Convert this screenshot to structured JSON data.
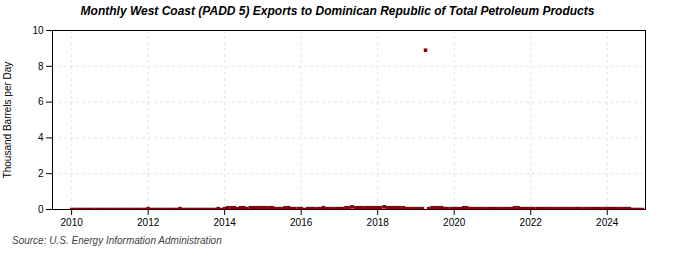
{
  "chart_data": {
    "type": "scatter",
    "title": "Monthly West Coast (PADD 5) Exports to Dominican Republic of Total Petroleum Products",
    "ylabel": "Thousand Barrels per Day",
    "source": "Source: U.S. Energy Information Administration",
    "color": "#8b0000",
    "marker": "square",
    "grid": true,
    "xlim": [
      2009.5,
      2025.0
    ],
    "xticks": [
      2010,
      2012,
      2014,
      2016,
      2018,
      2020,
      2022,
      2024
    ],
    "ylim": [
      0,
      10
    ],
    "yticks": [
      0,
      2,
      4,
      6,
      8,
      10
    ],
    "x": [
      2010.0,
      2010.08,
      2010.17,
      2010.25,
      2010.33,
      2010.42,
      2010.5,
      2010.58,
      2010.67,
      2010.75,
      2010.83,
      2010.92,
      2011.0,
      2011.08,
      2011.17,
      2011.25,
      2011.33,
      2011.42,
      2011.5,
      2011.58,
      2011.67,
      2011.75,
      2011.83,
      2011.92,
      2012.0,
      2012.08,
      2012.17,
      2012.25,
      2012.33,
      2012.42,
      2012.5,
      2012.58,
      2012.67,
      2012.75,
      2012.83,
      2012.92,
      2013.0,
      2013.08,
      2013.17,
      2013.25,
      2013.33,
      2013.42,
      2013.5,
      2013.58,
      2013.67,
      2013.75,
      2013.83,
      2013.92,
      2014.0,
      2014.08,
      2014.17,
      2014.25,
      2014.33,
      2014.42,
      2014.5,
      2014.58,
      2014.67,
      2014.75,
      2014.83,
      2014.92,
      2015.0,
      2015.08,
      2015.17,
      2015.25,
      2015.33,
      2015.42,
      2015.5,
      2015.58,
      2015.67,
      2015.75,
      2015.83,
      2015.92,
      2016.0,
      2016.08,
      2016.17,
      2016.25,
      2016.33,
      2016.42,
      2016.5,
      2016.58,
      2016.67,
      2016.75,
      2016.83,
      2016.92,
      2017.0,
      2017.08,
      2017.17,
      2017.25,
      2017.33,
      2017.42,
      2017.5,
      2017.58,
      2017.67,
      2017.75,
      2017.83,
      2017.92,
      2018.0,
      2018.08,
      2018.17,
      2018.25,
      2018.33,
      2018.42,
      2018.5,
      2018.58,
      2018.67,
      2018.75,
      2018.83,
      2018.92,
      2019.0,
      2019.08,
      2019.17,
      2019.25,
      2019.33,
      2019.42,
      2019.5,
      2019.58,
      2019.67,
      2019.75,
      2019.83,
      2019.92,
      2020.0,
      2020.08,
      2020.17,
      2020.25,
      2020.33,
      2020.42,
      2020.5,
      2020.58,
      2020.67,
      2020.75,
      2020.83,
      2020.92,
      2021.0,
      2021.08,
      2021.17,
      2021.25,
      2021.33,
      2021.42,
      2021.5,
      2021.58,
      2021.67,
      2021.75,
      2021.83,
      2021.92,
      2022.0,
      2022.08,
      2022.17,
      2022.25,
      2022.33,
      2022.42,
      2022.5,
      2022.58,
      2022.67,
      2022.75,
      2022.83,
      2022.92,
      2023.0,
      2023.08,
      2023.17,
      2023.25,
      2023.33,
      2023.42,
      2023.5,
      2023.58,
      2023.67,
      2023.75,
      2023.83,
      2023.92,
      2024.0,
      2024.08,
      2024.17,
      2024.25,
      2024.33,
      2024.42,
      2024.5,
      2024.58,
      2024.67,
      2024.75,
      2024.83,
      2024.92
    ],
    "values": [
      0.0,
      0.0,
      0.0,
      0.0,
      0.0,
      0.0,
      0.0,
      0.0,
      0.0,
      0.0,
      0.0,
      0.0,
      0.0,
      0.0,
      0.0,
      0.0,
      0.0,
      0.0,
      0.0,
      0.0,
      0.0,
      0.0,
      0.0,
      0.0,
      0.05,
      0.0,
      0.0,
      0.0,
      0.0,
      0.0,
      0.0,
      0.0,
      0.0,
      0.0,
      0.05,
      0.0,
      0.0,
      0.0,
      0.0,
      0.0,
      0.0,
      0.0,
      0.0,
      0.0,
      0.0,
      0.0,
      0.05,
      0.0,
      0.05,
      0.1,
      0.1,
      0.1,
      0.05,
      0.1,
      0.1,
      0.05,
      0.1,
      0.1,
      0.1,
      0.1,
      0.1,
      0.1,
      0.1,
      0.1,
      0.05,
      0.05,
      0.05,
      0.1,
      0.1,
      0.05,
      0.05,
      0.05,
      0.05,
      0.0,
      0.05,
      0.05,
      0.05,
      0.05,
      0.05,
      0.1,
      0.05,
      0.05,
      0.05,
      0.05,
      0.05,
      0.05,
      0.1,
      0.1,
      0.15,
      0.1,
      0.1,
      0.1,
      0.1,
      0.1,
      0.1,
      0.1,
      0.1,
      0.1,
      0.15,
      0.1,
      0.1,
      0.1,
      0.1,
      0.1,
      0.1,
      0.05,
      0.05,
      0.05,
      0.05,
      0.05,
      0.05,
      8.9,
      0.05,
      0.1,
      0.1,
      0.1,
      0.1,
      0.05,
      0.05,
      0.05,
      0.05,
      0.05,
      0.05,
      0.1,
      0.1,
      0.05,
      0.05,
      0.05,
      0.05,
      0.05,
      0.05,
      0.05,
      0.05,
      0.05,
      0.05,
      0.05,
      0.05,
      0.05,
      0.05,
      0.1,
      0.1,
      0.05,
      0.05,
      0.05,
      0.05,
      0.05,
      0.05,
      0.05,
      0.05,
      0.05,
      0.05,
      0.05,
      0.05,
      0.05,
      0.05,
      0.05,
      0.05,
      0.05,
      0.05,
      0.05,
      0.05,
      0.05,
      0.05,
      0.05,
      0.05,
      0.05,
      0.05,
      0.05,
      0.05,
      0.05,
      0.05,
      0.05,
      0.05,
      0.05,
      0.05,
      0.05,
      0.0,
      0.0,
      0.0,
      0.0
    ]
  }
}
